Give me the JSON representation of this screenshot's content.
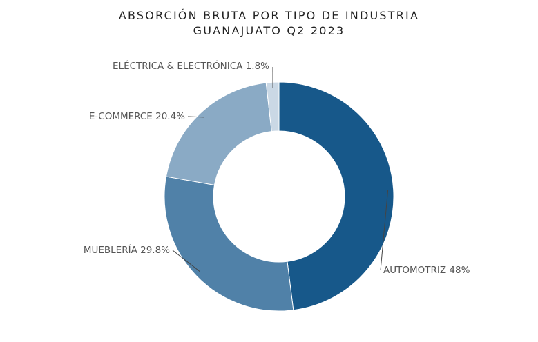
{
  "chart_data": {
    "type": "pie",
    "title": "ABSORCIÓN BRUTA POR TIPO DE INDUSTRIA",
    "subtitle": "GUANAJUATO Q2 2023",
    "categories": [
      "AUTOMOTRIZ",
      "MUEBLERÍA",
      "E-COMMERCE",
      "ELÉCTRICA & ELECTRÓNICA"
    ],
    "values": [
      48,
      29.8,
      20.4,
      1.8
    ],
    "value_labels": [
      "48%",
      "29.8%",
      "20.4%",
      "1.8%"
    ],
    "colors": [
      "#17588a",
      "#5081a8",
      "#8aaac5",
      "#cad8e5"
    ],
    "donut": true,
    "legend": "none"
  }
}
